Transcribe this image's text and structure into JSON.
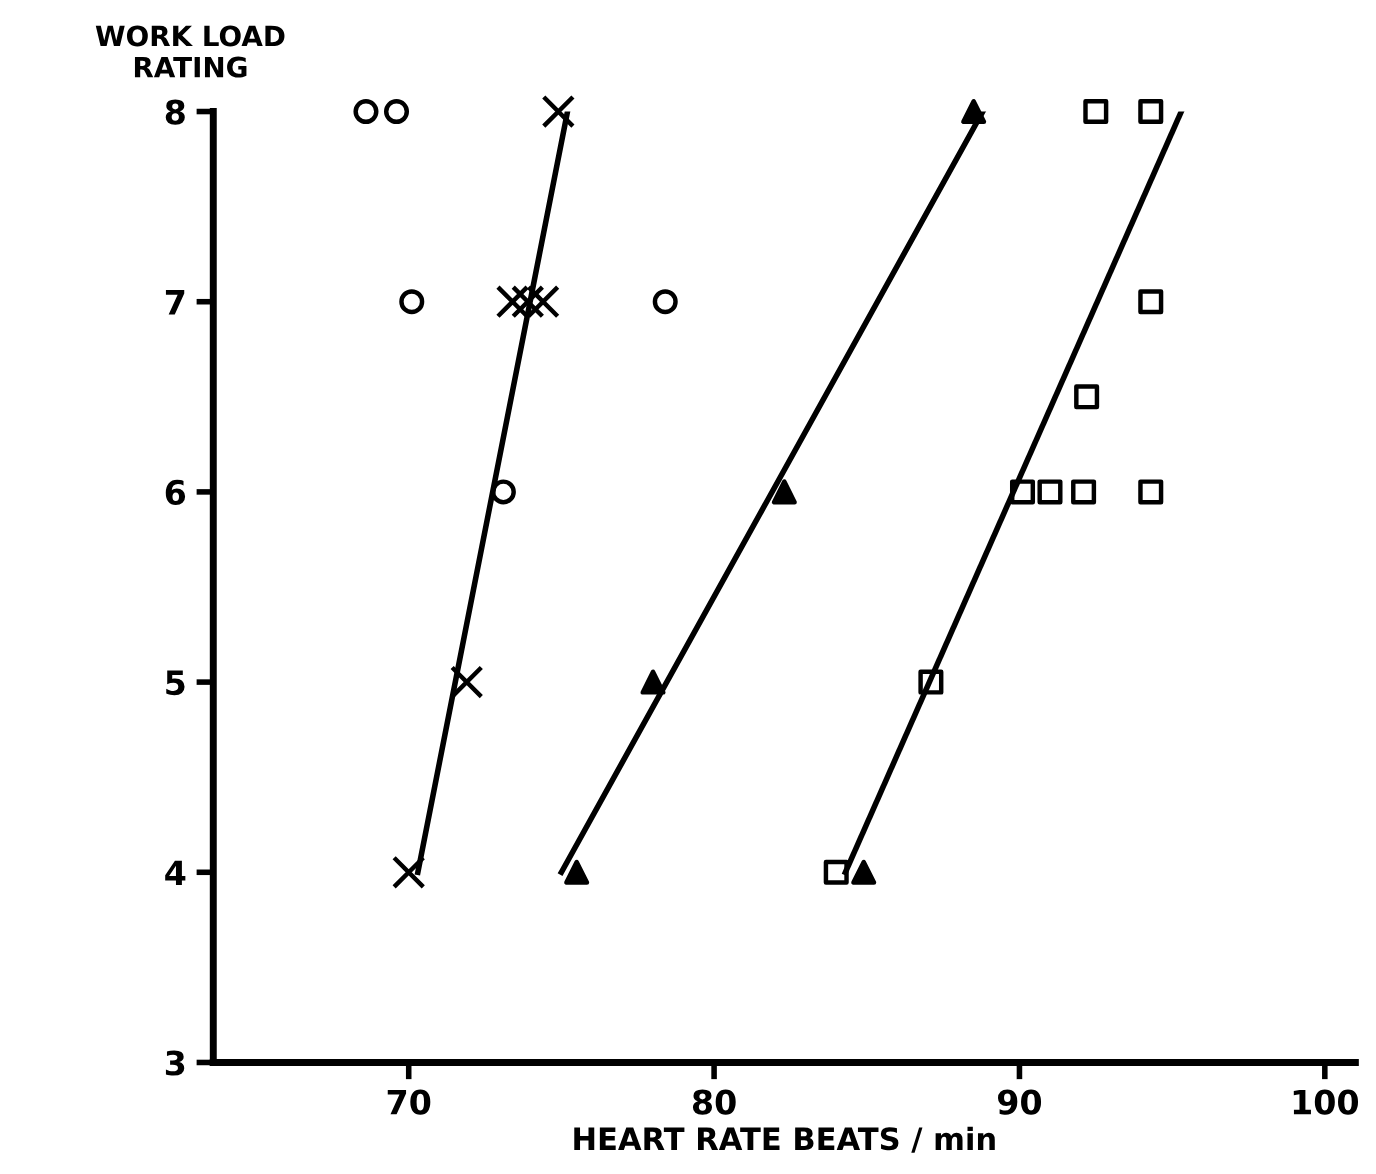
{
  "chart_data": {
    "type": "scatter",
    "xlabel": "HEART RATE BEATS / min",
    "ylabel": "WORK LOAD\nRATING",
    "xlim": [
      63.6,
      101
    ],
    "ylim": [
      3,
      8
    ],
    "xticks": [
      70,
      80,
      90,
      100
    ],
    "yticks": [
      3,
      4,
      5,
      6,
      7,
      8
    ],
    "grid": false,
    "legend": false,
    "series": [
      {
        "color": "#000000",
        "marker": "circle",
        "x": [
          68.6,
          69.6,
          70.1,
          78.4,
          73.1
        ],
        "values": [
          8,
          8,
          7,
          7,
          6
        ]
      },
      {
        "color": "#000000",
        "marker": "cross",
        "x": [
          74.9,
          73.4,
          73.9,
          74.4,
          71.9,
          70.0
        ],
        "values": [
          8,
          7,
          7,
          7,
          5,
          4
        ]
      },
      {
        "color": "#000000",
        "marker": "triangle",
        "x": [
          88.5,
          82.3,
          78.0,
          75.5,
          84.9
        ],
        "values": [
          8,
          6,
          5,
          4,
          4
        ]
      },
      {
        "color": "#000000",
        "marker": "square",
        "x": [
          92.5,
          94.3,
          94.3,
          92.2,
          90.1,
          91.0,
          92.1,
          94.3,
          87.1,
          84.0
        ],
        "values": [
          8,
          8,
          7,
          6.5,
          6,
          6,
          6,
          6,
          5,
          4
        ]
      },
      {
        "type": "line",
        "color": "#000000",
        "marker": "none",
        "line_style": "solid",
        "x": [
          70.3,
          75.2
        ],
        "values": [
          4,
          8
        ]
      },
      {
        "type": "line",
        "color": "#000000",
        "marker": "none",
        "line_style": "solid",
        "x": [
          75.0,
          88.8
        ],
        "values": [
          4,
          8
        ]
      },
      {
        "type": "line",
        "color": "#000000",
        "marker": "none",
        "line_style": "solid",
        "x": [
          84.3,
          95.3
        ],
        "values": [
          4,
          8
        ]
      }
    ]
  }
}
